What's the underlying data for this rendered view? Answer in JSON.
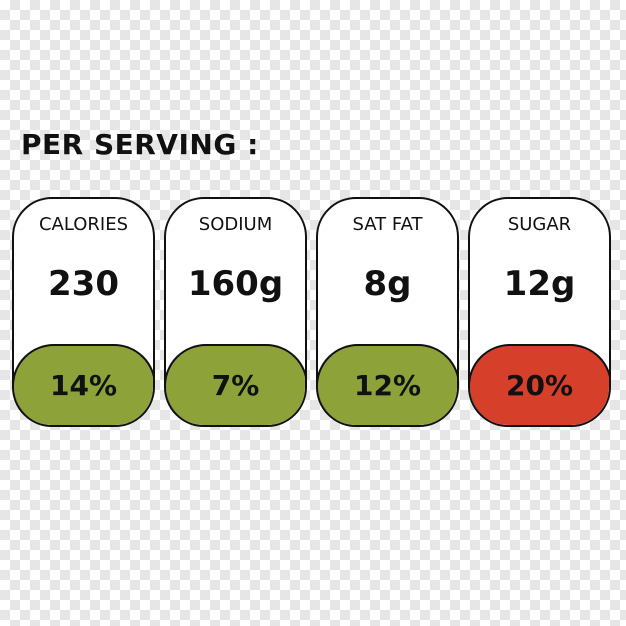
{
  "title": "PER SERVING :",
  "colors": {
    "ok": "#8da33a",
    "high": "#d6402a",
    "border": "#111111"
  },
  "items": [
    {
      "label": "CALORIES",
      "value": "230",
      "percent": "14%",
      "level": "ok"
    },
    {
      "label": "SODIUM",
      "value": "160g",
      "percent": "7%",
      "level": "ok"
    },
    {
      "label": "SAT FAT",
      "value": "8g",
      "percent": "12%",
      "level": "ok"
    },
    {
      "label": "SUGAR",
      "value": "12g",
      "percent": "20%",
      "level": "high"
    }
  ]
}
